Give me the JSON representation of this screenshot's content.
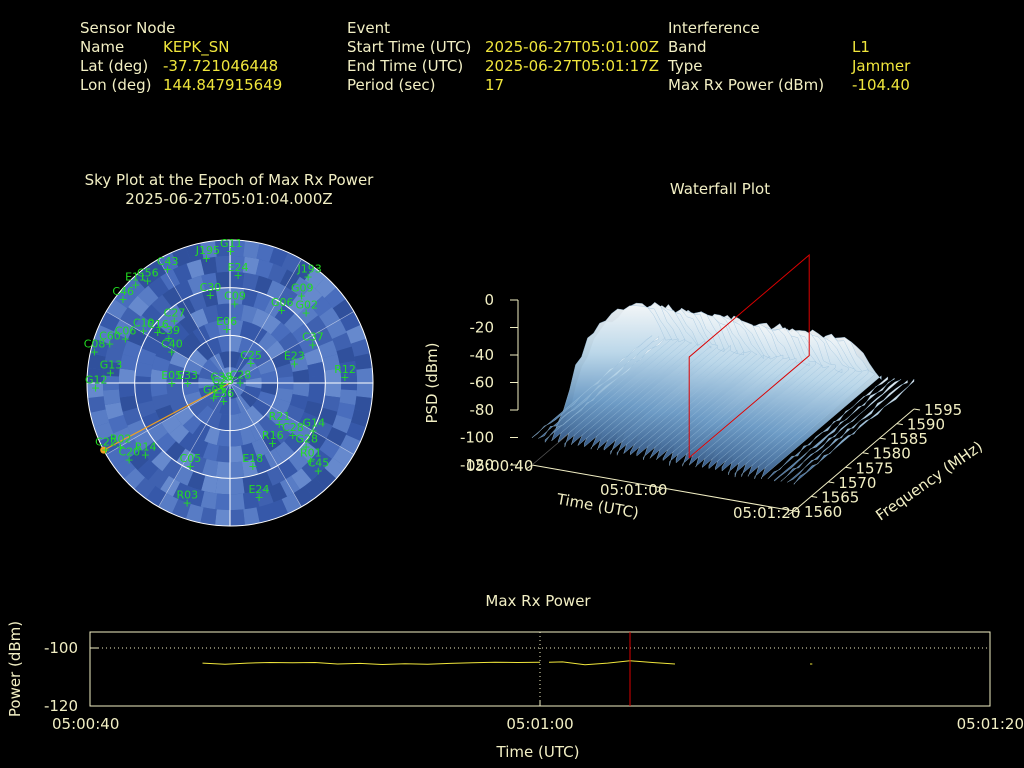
{
  "header": {
    "sensor": {
      "heading": "Sensor Node",
      "name_label": "Name",
      "name_value": "KEPK_SN",
      "lat_label": "Lat (deg)",
      "lat_value": "-37.721046448",
      "lon_label": "Lon (deg)",
      "lon_value": "144.847915649"
    },
    "event": {
      "heading": "Event",
      "start_label": "Start Time (UTC)",
      "start_value": "2025-06-27T05:01:00Z",
      "end_label": "End Time (UTC)",
      "end_value": "2025-06-27T05:01:17Z",
      "period_label": "Period (sec)",
      "period_value": "17"
    },
    "interference": {
      "heading": "Interference",
      "band_label": "Band",
      "band_value": "L1",
      "type_label": "Type",
      "type_value": "Jammer",
      "power_label": "Max Rx Power (dBm)",
      "power_value": "-104.40"
    }
  },
  "colors": {
    "label": "#f2efc4",
    "value": "#f0e63c",
    "sat": "#22dd22",
    "marker": "#dd0000",
    "sky_fill": "#3f62b0"
  },
  "chart_data": [
    {
      "type": "scatter",
      "subtype": "polar-sky-plot",
      "title": "Sky Plot at the Epoch of Max Rx Power",
      "subtitle": "2025-06-27T05:01:04.000Z",
      "elevation_rings_deg": [
        0,
        30,
        60,
        90
      ],
      "satellites": [
        {
          "id": "G11",
          "az": 0,
          "el": 83
        },
        {
          "id": "J193",
          "az": 36,
          "el": 83
        },
        {
          "id": "C43",
          "az": 331,
          "el": 82
        },
        {
          "id": "J195",
          "az": 349,
          "el": 80
        },
        {
          "id": "C56",
          "az": 321,
          "el": 83
        },
        {
          "id": "E11",
          "az": 316,
          "el": 86
        },
        {
          "id": "C46",
          "az": 308,
          "el": 86
        },
        {
          "id": "E24",
          "az": 4,
          "el": 68
        },
        {
          "id": "C30",
          "az": 347,
          "el": 57
        },
        {
          "id": "G06",
          "az": 35,
          "el": 56
        },
        {
          "id": "C09",
          "az": 3,
          "el": 50
        },
        {
          "id": "G02",
          "az": 47,
          "el": 65
        },
        {
          "id": "G09",
          "az": 39,
          "el": 71
        },
        {
          "id": "C27",
          "az": 318,
          "el": 53
        },
        {
          "id": "C39",
          "az": 306,
          "el": 48
        },
        {
          "id": "C19",
          "az": 301,
          "el": 64
        },
        {
          "id": "C16",
          "az": 305,
          "el": 56
        },
        {
          "id": "C40",
          "az": 298,
          "el": 42
        },
        {
          "id": "C06",
          "az": 293,
          "el": 72
        },
        {
          "id": "C60",
          "az": 288,
          "el": 80
        },
        {
          "id": "C08",
          "az": 283,
          "el": 88
        },
        {
          "id": "G13",
          "az": 275,
          "el": 76
        },
        {
          "id": "G12",
          "az": 268,
          "el": 85
        },
        {
          "id": "E06",
          "az": 356,
          "el": 34
        },
        {
          "id": "E23",
          "az": 73,
          "el": 42
        },
        {
          "id": "C37",
          "az": 65,
          "el": 57
        },
        {
          "id": "R12",
          "az": 87,
          "el": 72
        },
        {
          "id": "E06b",
          "label": "E05",
          "az": 270,
          "el": 37
        },
        {
          "id": "E33",
          "az": 270,
          "el": 27
        },
        {
          "id": "C38",
          "az": 262,
          "el": 6
        },
        {
          "id": "C25",
          "az": 45,
          "el": 18
        },
        {
          "id": "C28",
          "az": 87,
          "el": 6
        },
        {
          "id": "G05",
          "az": 230,
          "el": 14
        },
        {
          "id": "G25",
          "az": 240,
          "el": 6
        },
        {
          "id": "E36",
          "az": 201,
          "el": 12
        },
        {
          "id": "G14",
          "az": 120,
          "el": 60
        },
        {
          "id": "R16",
          "az": 145,
          "el": 46
        },
        {
          "id": "G28",
          "az": 130,
          "el": 62
        },
        {
          "id": "R21",
          "az": 130,
          "el": 40
        },
        {
          "id": "C28b",
          "label": "C28",
          "az": 130,
          "el": 51
        },
        {
          "id": "C05",
          "az": 206,
          "el": 58
        },
        {
          "id": "R02",
          "az": 240,
          "el": 80
        },
        {
          "id": "C20",
          "az": 233,
          "el": 80
        },
        {
          "id": "C22",
          "az": 242,
          "el": 89
        },
        {
          "id": "R14",
          "az": 230,
          "el": 70
        },
        {
          "id": "E18",
          "az": 165,
          "el": 54
        },
        {
          "id": "R01",
          "az": 134,
          "el": 70
        },
        {
          "id": "C45",
          "az": 135,
          "el": 78
        },
        {
          "id": "E24b",
          "label": "E24",
          "az": 166,
          "el": 74
        },
        {
          "id": "R03",
          "az": 200,
          "el": 80
        }
      ],
      "interference_direction_az": 242
    },
    {
      "type": "area",
      "subtype": "3d-waterfall",
      "title": "Waterfall Plot",
      "xlabel": "Time (UTC)",
      "ylabel": "Frequency (MHz)",
      "zlabel": "PSD (dBm)",
      "x_ticks": [
        "05:00:40",
        "05:01:00",
        "05:01:20"
      ],
      "y_ticks": [
        "1560",
        "1565",
        "1570",
        "1575",
        "1580",
        "1585",
        "1590",
        "1595"
      ],
      "z_ticks": [
        "0",
        "-20",
        "-40",
        "-60",
        "-80",
        "-100",
        "-120"
      ],
      "zlim": [
        -120,
        0
      ],
      "surface_profile_dbm": [
        -100,
        -92,
        -85,
        -72,
        -62,
        -55,
        -50,
        -47,
        -45,
        -44,
        -44,
        -45,
        -47,
        -49,
        -51,
        -56,
        -62,
        -72,
        -85,
        -95,
        -100
      ],
      "marker_time": "05:01:04"
    },
    {
      "type": "line",
      "title": "Max Rx Power",
      "xlabel": "Time (UTC)",
      "ylabel": "Power (dBm)",
      "x_ticks": [
        "05:00:40",
        "05:01:00",
        "05:01:20"
      ],
      "y_ticks": [
        "-100",
        "-120"
      ],
      "ylim": [
        -120,
        -100
      ],
      "xlim_sec": [
        0,
        40
      ],
      "reference_line_dbm": -100,
      "marker_sec": 24,
      "series": [
        {
          "segments": [
            [
              [
                5,
                -105.2
              ],
              [
                6,
                -105.6
              ],
              [
                7,
                -105.2
              ],
              [
                8,
                -105.0
              ],
              [
                9,
                -105.1
              ],
              [
                10,
                -105.0
              ],
              [
                11,
                -105.5
              ],
              [
                12,
                -105.3
              ],
              [
                13,
                -105.7
              ],
              [
                14,
                -105.4
              ],
              [
                15,
                -105.6
              ],
              [
                16,
                -105.3
              ],
              [
                17,
                -105.1
              ],
              [
                18,
                -104.9
              ],
              [
                19,
                -105.0
              ],
              [
                20,
                -104.9
              ]
            ],
            [
              [
                20.4,
                -104.9
              ],
              [
                21,
                -104.8
              ],
              [
                22,
                -105.8
              ],
              [
                23,
                -105.2
              ],
              [
                24,
                -104.4
              ],
              [
                25,
                -105.0
              ],
              [
                26,
                -105.5
              ]
            ],
            [
              [
                32.0,
                -105.5
              ],
              [
                32.1,
                -105.5
              ]
            ]
          ]
        }
      ]
    }
  ]
}
